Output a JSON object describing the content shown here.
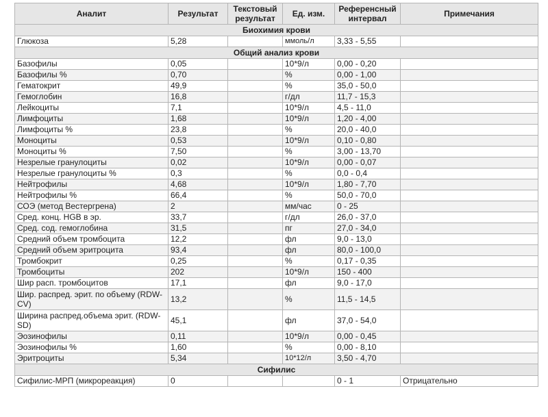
{
  "headers": [
    "Аналит",
    "Результат",
    "Текстовый результат",
    "Ед. изм.",
    "Референсный интервал",
    "Примечания"
  ],
  "sections": [
    {
      "title": "Биохимия крови",
      "rows": [
        [
          "Глюкоза",
          "5,28",
          "",
          "ммоль/л",
          "3,33 - 5,55",
          ""
        ]
      ]
    },
    {
      "title": "Общий анализ крови",
      "rows": [
        [
          "Базофилы",
          "0,05",
          "",
          "10*9/л",
          "0,00 - 0,20",
          ""
        ],
        [
          "Базофилы %",
          "0,70",
          "",
          "%",
          "0,00 - 1,00",
          ""
        ],
        [
          "Гематокрит",
          "49,9",
          "",
          "%",
          "35,0 - 50,0",
          ""
        ],
        [
          "Гемоглобин",
          "16,8",
          "",
          "г/дл",
          "11,7 - 15,3",
          ""
        ],
        [
          "Лейкоциты",
          "7,1",
          "",
          "10*9/л",
          "4,5 - 11,0",
          ""
        ],
        [
          "Лимфоциты",
          "1,68",
          "",
          "10*9/л",
          "1,20 - 4,00",
          ""
        ],
        [
          "Лимфоциты %",
          "23,8",
          "",
          "%",
          "20,0 - 40,0",
          ""
        ],
        [
          "Моноциты",
          "0,53",
          "",
          "10*9/л",
          "0,10 - 0,80",
          ""
        ],
        [
          "Моноциты %",
          "7,50",
          "",
          "%",
          "3,00 - 13,70",
          ""
        ],
        [
          "Незрелые гранулоциты",
          "0,02",
          "",
          "10*9/л",
          "0,00 - 0,07",
          ""
        ],
        [
          "Незрелые гранулоциты %",
          "0,3",
          "",
          "%",
          "0,0 - 0,4",
          ""
        ],
        [
          "Нейтрофилы",
          "4,68",
          "",
          "10*9/л",
          "1,80 - 7,70",
          ""
        ],
        [
          "Нейтрофилы %",
          "66,4",
          "",
          "%",
          "50,0 - 70,0",
          ""
        ],
        [
          "СОЭ (метод Вестергрена)",
          "2",
          "",
          "мм/час",
          "0 - 25",
          ""
        ],
        [
          "Сред. конц. HGB в эр.",
          "33,7",
          "",
          "г/дл",
          "26,0 - 37,0",
          ""
        ],
        [
          "Сред. сод. гемоглобина",
          "31,5",
          "",
          "пг",
          "27,0 - 34,0",
          ""
        ],
        [
          "Средний объем тромбоцита",
          "12,2",
          "",
          "фл",
          "9,0 - 13,0",
          ""
        ],
        [
          "Средний объем эритроцита",
          "93,4",
          "",
          "фл",
          "80,0 - 100,0",
          ""
        ],
        [
          "Тромбокрит",
          "0,25",
          "",
          "%",
          "0,17 - 0,35",
          ""
        ],
        [
          "Тромбоциты",
          "202",
          "",
          "10*9/л",
          "150 - 400",
          ""
        ],
        [
          "Шир расп. тромбоцитов",
          "17,1",
          "",
          "фл",
          "9,0 - 17,0",
          ""
        ],
        [
          "Шир. распред. эрит. по объему (RDW-CV)",
          "13,2",
          "",
          "%",
          "11,5 - 14,5",
          ""
        ],
        [
          "Ширина распред.объема эрит. (RDW-SD)",
          "45,1",
          "",
          "фл",
          "37,0 - 54,0",
          ""
        ],
        [
          "Эозинофилы",
          "0,11",
          "",
          "10*9/л",
          "0,00 - 0,45",
          ""
        ],
        [
          "Эозинофилы %",
          "1,60",
          "",
          "%",
          "0,00 - 8,10",
          ""
        ],
        [
          "Эритроциты",
          "5,34",
          "",
          "10*12/л",
          "3,50 - 4,70",
          ""
        ]
      ]
    },
    {
      "title": "Сифилис",
      "rows": [
        [
          "Сифилис-МРП (микрореакция)",
          "0",
          "",
          "",
          "0 - 1",
          "Отрицательно"
        ]
      ]
    }
  ]
}
